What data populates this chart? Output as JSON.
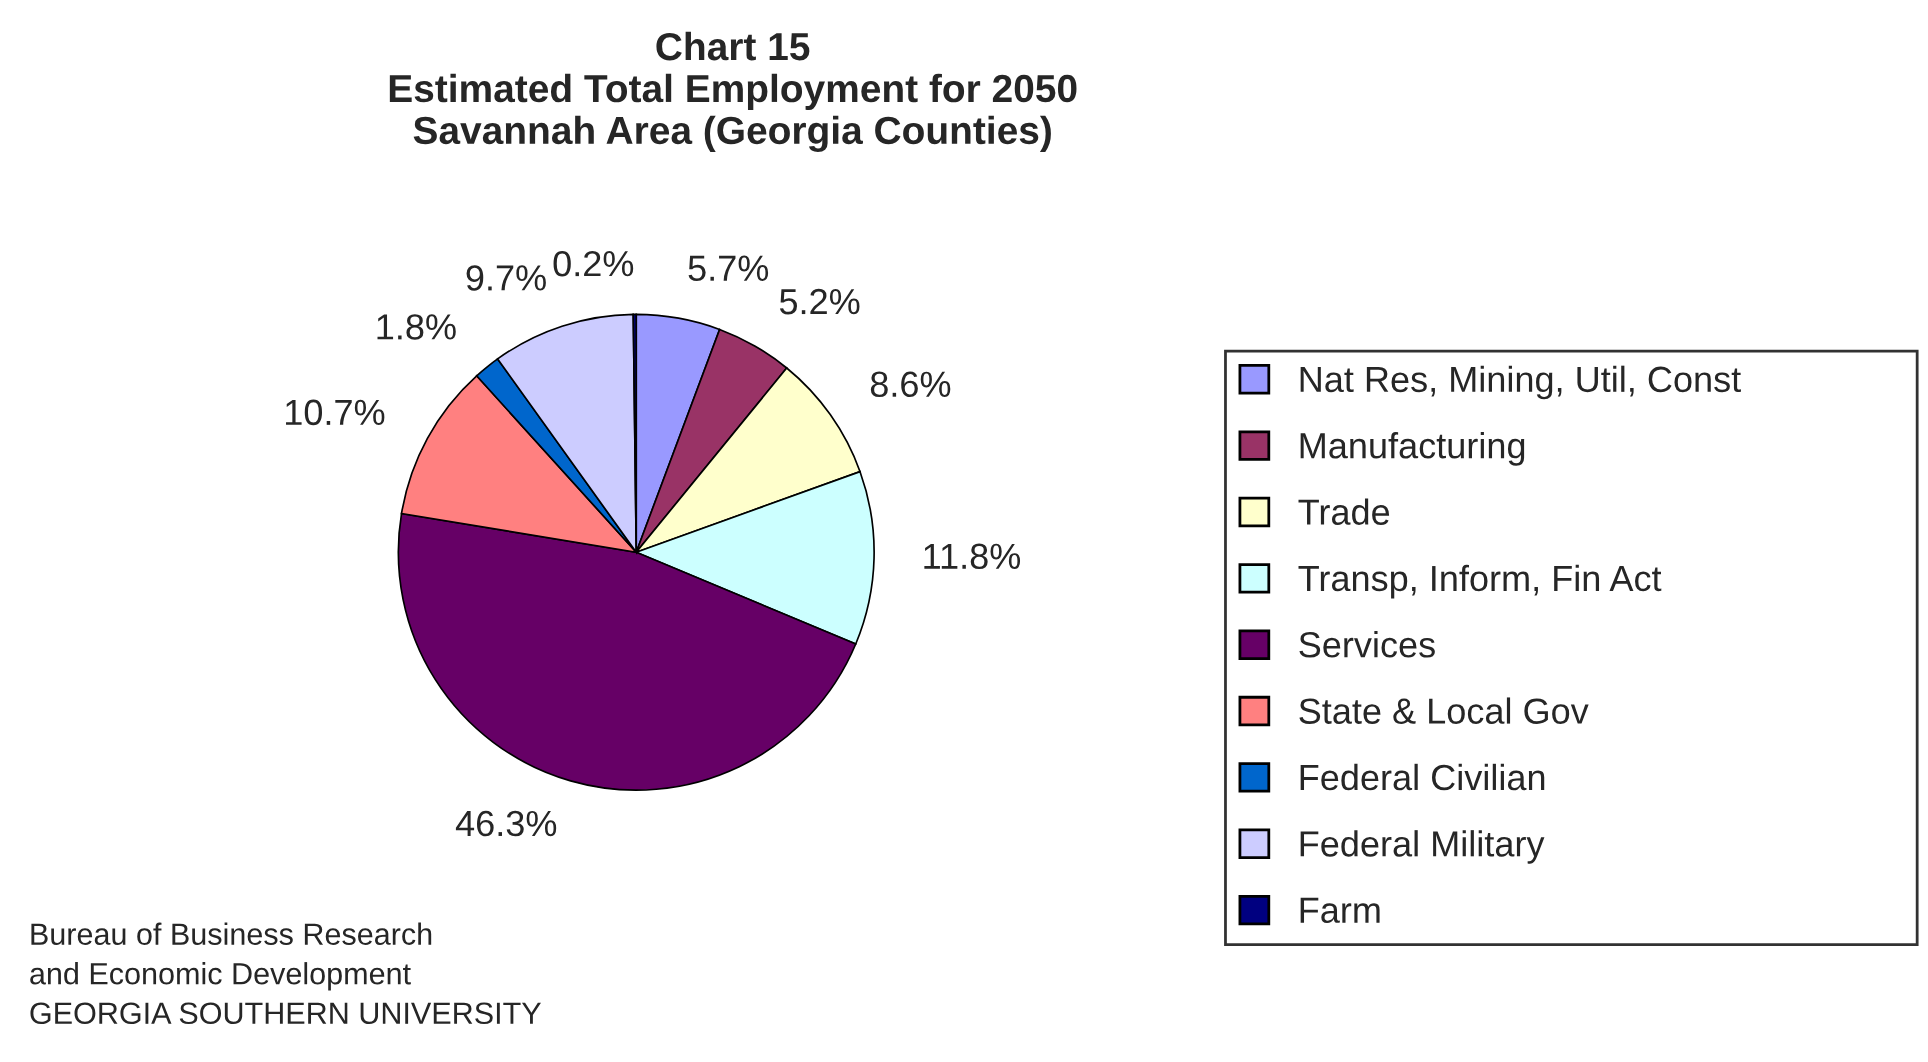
{
  "chart_data": {
    "type": "pie",
    "title": "Chart 15\nEstimated Total Employment for 2050\nSavannah Area (Georgia Counties)",
    "categories": [
      "Nat Res, Mining, Util, Const",
      "Manufacturing",
      "Trade",
      "Transp, Inform, Fin Act",
      "Services",
      "State & Local Gov",
      "Federal Civilian",
      "Federal Military",
      "Farm"
    ],
    "values": [
      5.7,
      5.2,
      8.6,
      11.8,
      46.3,
      10.7,
      1.8,
      9.7,
      0.2
    ],
    "value_labels": [
      "5.7%",
      "5.2%",
      "8.6%",
      "11.8%",
      "46.3%",
      "10.7%",
      "1.8%",
      "9.7%",
      "0.2%"
    ],
    "colors": [
      "#9999ff",
      "#993366",
      "#ffffcc",
      "#ccffff",
      "#660066",
      "#ff8080",
      "#0066cc",
      "#ccccff",
      "#000080"
    ],
    "legend": "right",
    "annotations": [
      "Bureau of Business Research\nand Economic Development\nGEORGIA SOUTHERN UNIVERSITY"
    ]
  }
}
